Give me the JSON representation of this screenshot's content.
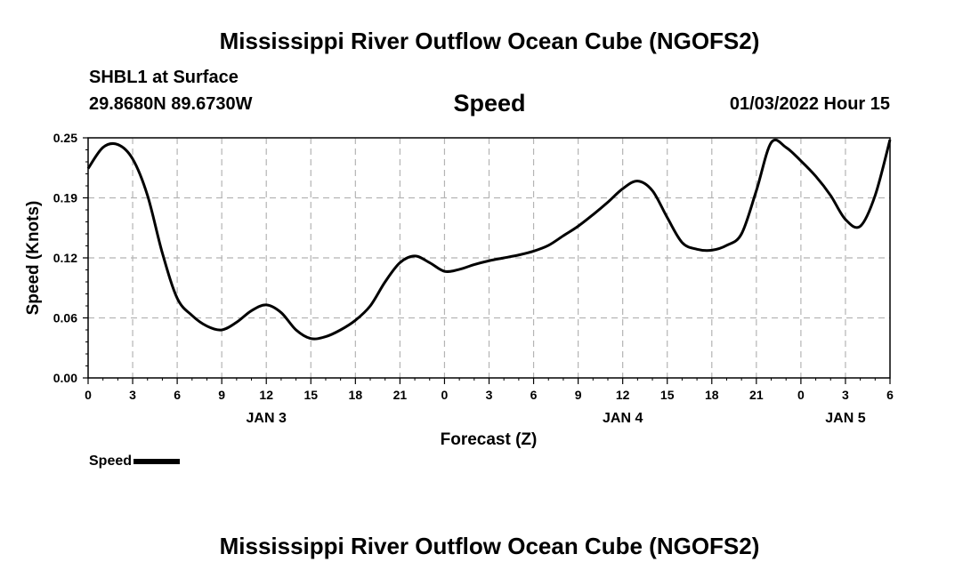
{
  "header": {
    "title": "Mississippi River Outflow Ocean Cube (NGOFS2)",
    "station": "SHBL1 at Surface",
    "coordinates": "29.8680N  89.6730W",
    "variable": "Speed",
    "datetime": "01/03/2022 Hour 15"
  },
  "footer": {
    "title": "Mississippi River Outflow Ocean Cube (NGOFS2)"
  },
  "legend": {
    "label": "Speed",
    "color": "#000000"
  },
  "chart_data": {
    "type": "line",
    "title": "Speed",
    "xlabel": "Forecast (Z)",
    "ylabel": "Speed (Knots)",
    "xlim": [
      0,
      54
    ],
    "ylim": [
      0.0,
      0.25
    ],
    "grid": true,
    "x_ticks": [
      0,
      3,
      6,
      9,
      12,
      15,
      18,
      21,
      24,
      27,
      30,
      33,
      36,
      39,
      42,
      45,
      48,
      51,
      54
    ],
    "x_tick_labels": [
      "0",
      "3",
      "6",
      "9",
      "12",
      "15",
      "18",
      "21",
      "0",
      "3",
      "6",
      "9",
      "12",
      "15",
      "18",
      "21",
      "0",
      "3",
      "6"
    ],
    "y_ticks": [
      0.0,
      0.0625,
      0.125,
      0.1875,
      0.25
    ],
    "y_tick_labels": [
      "0.00",
      "0.06",
      "0.12",
      "0.19",
      "0.25"
    ],
    "date_labels": [
      {
        "label": "JAN 3",
        "x": 12
      },
      {
        "label": "JAN 4",
        "x": 36
      },
      {
        "label": "JAN 5",
        "x": 51
      }
    ],
    "series": [
      {
        "name": "Speed",
        "x": [
          0,
          1,
          2,
          3,
          4,
          5,
          6,
          7,
          8,
          9,
          10,
          11,
          12,
          13,
          14,
          15,
          16,
          17,
          18,
          19,
          20,
          21,
          22,
          23,
          24,
          25,
          26,
          27,
          28,
          29,
          30,
          31,
          32,
          33,
          34,
          35,
          36,
          37,
          38,
          39,
          40,
          41,
          42,
          43,
          44,
          45,
          46,
          47,
          48,
          49,
          50,
          51,
          52,
          53,
          54
        ],
        "values": [
          0.218,
          0.24,
          0.243,
          0.228,
          0.19,
          0.13,
          0.083,
          0.065,
          0.054,
          0.05,
          0.058,
          0.07,
          0.076,
          0.068,
          0.05,
          0.041,
          0.043,
          0.05,
          0.06,
          0.075,
          0.1,
          0.12,
          0.127,
          0.12,
          0.111,
          0.113,
          0.118,
          0.122,
          0.125,
          0.128,
          0.132,
          0.138,
          0.148,
          0.158,
          0.17,
          0.183,
          0.197,
          0.205,
          0.195,
          0.167,
          0.141,
          0.134,
          0.133,
          0.138,
          0.15,
          0.195,
          0.245,
          0.24,
          0.226,
          0.21,
          0.19,
          0.165,
          0.158,
          0.19,
          0.248
        ]
      }
    ]
  }
}
